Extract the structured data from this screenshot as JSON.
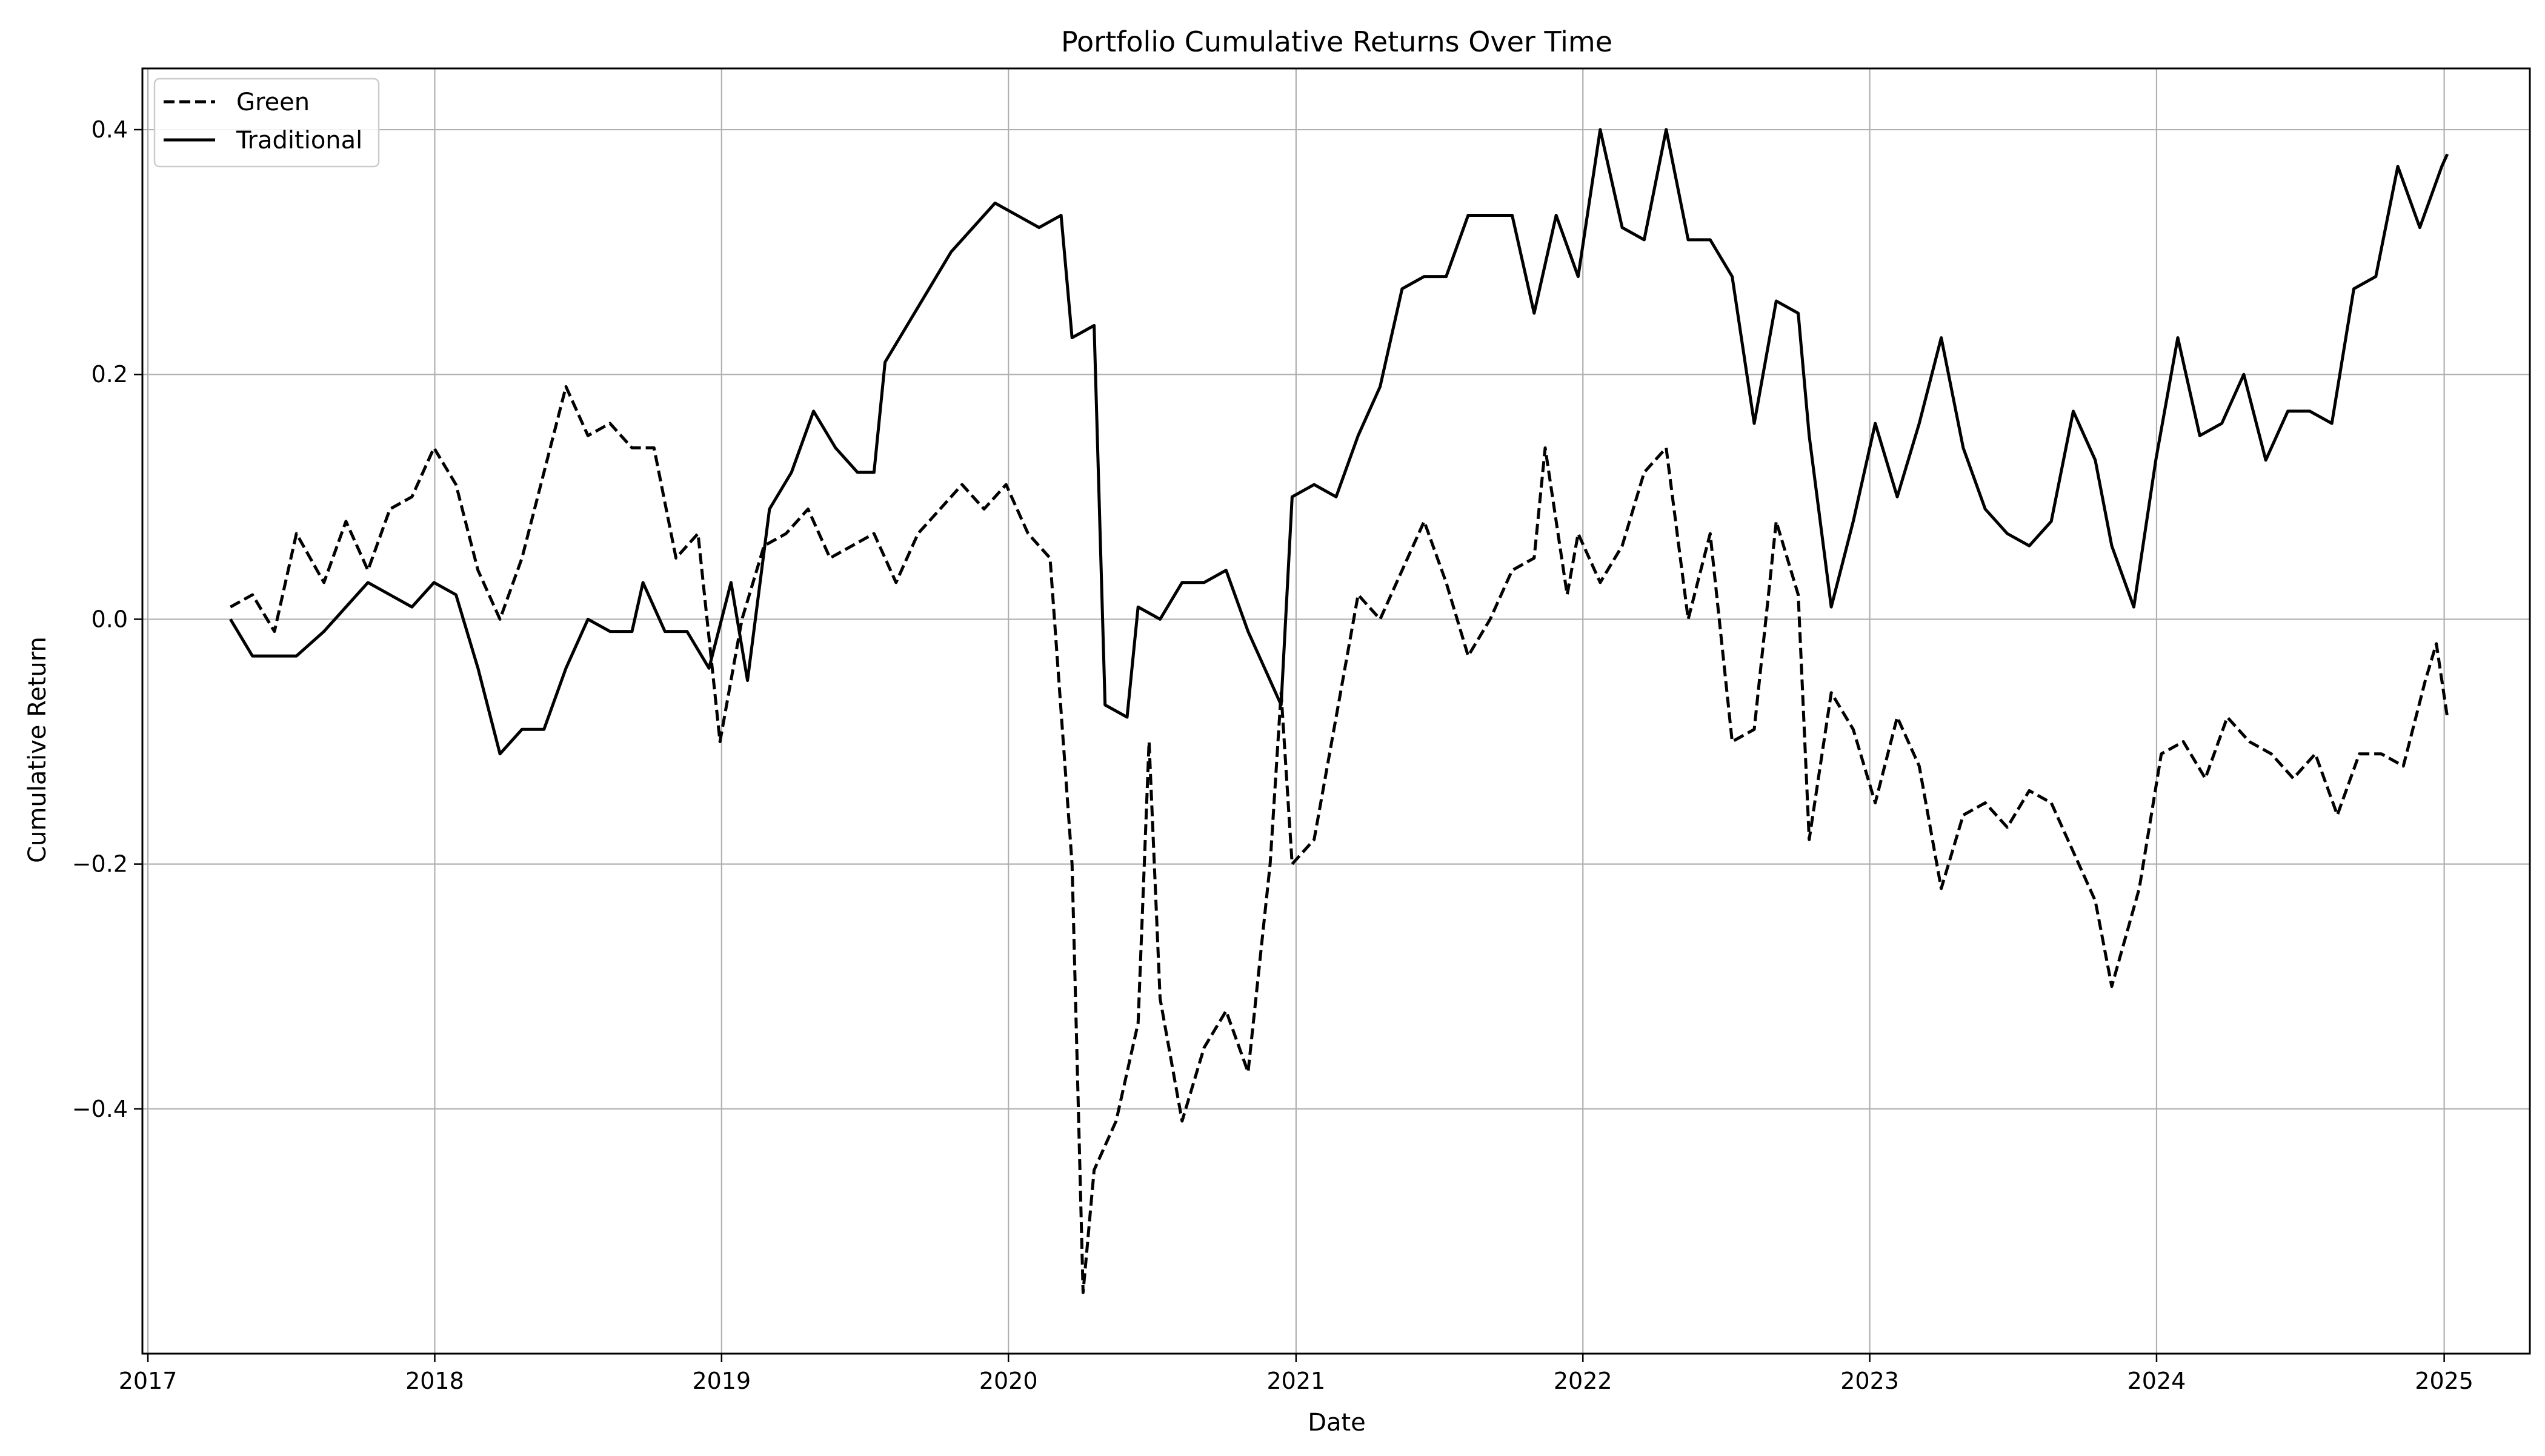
{
  "chart_data": {
    "type": "line",
    "title": "Portfolio Cumulative Returns Over Time",
    "xlabel": "Date",
    "ylabel": "Cumulative Return",
    "xlim": [
      "2016-12-25",
      "2025-04-20"
    ],
    "ylim": [
      -0.6,
      0.45
    ],
    "x_ticks": [
      "2017",
      "2018",
      "2019",
      "2020",
      "2021",
      "2022",
      "2023",
      "2024",
      "2025"
    ],
    "y_ticks": [
      -0.4,
      -0.2,
      0.0,
      0.2,
      0.4
    ],
    "y_tick_labels": [
      "−0.4",
      "−0.2",
      "0.0",
      "0.2",
      "0.4"
    ],
    "grid": true,
    "legend_position": "top-left",
    "series": [
      {
        "name": "Green",
        "style": "dashed",
        "color": "#000000",
        "points": [
          [
            "2017-04-16",
            0.01
          ],
          [
            "2017-05-14",
            0.02
          ],
          [
            "2017-06-11",
            -0.01
          ],
          [
            "2017-07-09",
            0.07
          ],
          [
            "2017-08-13",
            0.03
          ],
          [
            "2017-09-10",
            0.08
          ],
          [
            "2017-10-08",
            0.04
          ],
          [
            "2017-11-05",
            0.09
          ],
          [
            "2017-12-03",
            0.1
          ],
          [
            "2017-12-31",
            0.14
          ],
          [
            "2018-01-28",
            0.11
          ],
          [
            "2018-02-25",
            0.04
          ],
          [
            "2018-03-25",
            0.0
          ],
          [
            "2018-04-22",
            0.05
          ],
          [
            "2018-05-20",
            0.12
          ],
          [
            "2018-06-17",
            0.19
          ],
          [
            "2018-07-15",
            0.15
          ],
          [
            "2018-08-12",
            0.16
          ],
          [
            "2018-09-09",
            0.14
          ],
          [
            "2018-10-07",
            0.14
          ],
          [
            "2018-11-04",
            0.05
          ],
          [
            "2018-12-02",
            0.07
          ],
          [
            "2018-12-30",
            -0.1
          ],
          [
            "2019-01-27",
            0.0
          ],
          [
            "2019-02-24",
            0.06
          ],
          [
            "2019-03-24",
            0.07
          ],
          [
            "2019-04-21",
            0.09
          ],
          [
            "2019-05-19",
            0.05
          ],
          [
            "2019-06-16",
            0.06
          ],
          [
            "2019-07-14",
            0.07
          ],
          [
            "2019-08-11",
            0.03
          ],
          [
            "2019-09-08",
            0.07
          ],
          [
            "2019-10-06",
            0.09
          ],
          [
            "2019-11-03",
            0.11
          ],
          [
            "2019-12-01",
            0.09
          ],
          [
            "2019-12-29",
            0.11
          ],
          [
            "2020-01-26",
            0.07
          ],
          [
            "2020-02-23",
            0.05
          ],
          [
            "2020-03-22",
            -0.2
          ],
          [
            "2020-04-05",
            -0.55
          ],
          [
            "2020-04-19",
            -0.45
          ],
          [
            "2020-05-17",
            -0.41
          ],
          [
            "2020-06-14",
            -0.33
          ],
          [
            "2020-06-28",
            -0.1
          ],
          [
            "2020-07-12",
            -0.31
          ],
          [
            "2020-08-09",
            -0.41
          ],
          [
            "2020-09-06",
            -0.35
          ],
          [
            "2020-10-04",
            -0.32
          ],
          [
            "2020-11-01",
            -0.37
          ],
          [
            "2020-11-29",
            -0.2
          ],
          [
            "2020-12-13",
            -0.06
          ],
          [
            "2020-12-27",
            -0.2
          ],
          [
            "2021-01-24",
            -0.18
          ],
          [
            "2021-02-21",
            -0.08
          ],
          [
            "2021-03-21",
            0.02
          ],
          [
            "2021-04-18",
            0.0
          ],
          [
            "2021-05-16",
            0.04
          ],
          [
            "2021-06-13",
            0.08
          ],
          [
            "2021-07-11",
            0.03
          ],
          [
            "2021-08-08",
            -0.03
          ],
          [
            "2021-09-05",
            0.0
          ],
          [
            "2021-10-03",
            0.04
          ],
          [
            "2021-10-31",
            0.05
          ],
          [
            "2021-11-14",
            0.14
          ],
          [
            "2021-12-12",
            0.02
          ],
          [
            "2021-12-26",
            0.07
          ],
          [
            "2022-01-23",
            0.03
          ],
          [
            "2022-02-20",
            0.06
          ],
          [
            "2022-03-20",
            0.12
          ],
          [
            "2022-04-17",
            0.14
          ],
          [
            "2022-05-15",
            0.0
          ],
          [
            "2022-06-12",
            0.07
          ],
          [
            "2022-07-10",
            -0.1
          ],
          [
            "2022-08-07",
            -0.09
          ],
          [
            "2022-09-04",
            0.08
          ],
          [
            "2022-10-02",
            0.02
          ],
          [
            "2022-10-16",
            -0.18
          ],
          [
            "2022-11-13",
            -0.06
          ],
          [
            "2022-12-11",
            -0.09
          ],
          [
            "2023-01-08",
            -0.15
          ],
          [
            "2023-02-05",
            -0.08
          ],
          [
            "2023-03-05",
            -0.12
          ],
          [
            "2023-04-02",
            -0.22
          ],
          [
            "2023-04-30",
            -0.16
          ],
          [
            "2023-05-28",
            -0.15
          ],
          [
            "2023-06-25",
            -0.17
          ],
          [
            "2023-07-23",
            -0.14
          ],
          [
            "2023-08-20",
            -0.15
          ],
          [
            "2023-09-17",
            -0.19
          ],
          [
            "2023-10-15",
            -0.23
          ],
          [
            "2023-11-05",
            -0.3
          ],
          [
            "2023-12-10",
            -0.22
          ],
          [
            "2024-01-07",
            -0.11
          ],
          [
            "2024-02-04",
            -0.1
          ],
          [
            "2024-03-03",
            -0.13
          ],
          [
            "2024-03-31",
            -0.08
          ],
          [
            "2024-04-28",
            -0.1
          ],
          [
            "2024-05-26",
            -0.11
          ],
          [
            "2024-06-23",
            -0.13
          ],
          [
            "2024-07-21",
            -0.11
          ],
          [
            "2024-08-18",
            -0.16
          ],
          [
            "2024-09-15",
            -0.11
          ],
          [
            "2024-10-13",
            -0.11
          ],
          [
            "2024-11-10",
            -0.12
          ],
          [
            "2024-12-08",
            -0.05
          ],
          [
            "2024-12-22",
            -0.02
          ],
          [
            "2025-01-05",
            -0.08
          ]
        ]
      },
      {
        "name": "Traditional",
        "style": "solid",
        "color": "#000000",
        "points": [
          [
            "2017-04-16",
            0.0
          ],
          [
            "2017-05-14",
            -0.03
          ],
          [
            "2017-06-11",
            -0.03
          ],
          [
            "2017-07-09",
            -0.03
          ],
          [
            "2017-08-13",
            -0.01
          ],
          [
            "2017-09-10",
            0.01
          ],
          [
            "2017-10-08",
            0.03
          ],
          [
            "2017-11-05",
            0.02
          ],
          [
            "2017-12-03",
            0.01
          ],
          [
            "2017-12-31",
            0.03
          ],
          [
            "2018-01-28",
            0.02
          ],
          [
            "2018-02-25",
            -0.04
          ],
          [
            "2018-03-25",
            -0.11
          ],
          [
            "2018-04-22",
            -0.09
          ],
          [
            "2018-05-20",
            -0.09
          ],
          [
            "2018-06-17",
            -0.04
          ],
          [
            "2018-07-15",
            0.0
          ],
          [
            "2018-08-12",
            -0.01
          ],
          [
            "2018-09-09",
            -0.01
          ],
          [
            "2018-09-23",
            0.03
          ],
          [
            "2018-10-21",
            -0.01
          ],
          [
            "2018-11-18",
            -0.01
          ],
          [
            "2018-12-16",
            -0.04
          ],
          [
            "2019-01-13",
            0.03
          ],
          [
            "2019-02-03",
            -0.05
          ],
          [
            "2019-03-03",
            0.09
          ],
          [
            "2019-03-31",
            0.12
          ],
          [
            "2019-04-28",
            0.17
          ],
          [
            "2019-05-26",
            0.14
          ],
          [
            "2019-06-23",
            0.12
          ],
          [
            "2019-07-14",
            0.12
          ],
          [
            "2019-07-28",
            0.21
          ],
          [
            "2019-08-25",
            0.24
          ],
          [
            "2019-09-22",
            0.27
          ],
          [
            "2019-10-20",
            0.3
          ],
          [
            "2019-11-17",
            0.32
          ],
          [
            "2019-12-15",
            0.34
          ],
          [
            "2020-01-12",
            0.33
          ],
          [
            "2020-02-09",
            0.32
          ],
          [
            "2020-03-08",
            0.33
          ],
          [
            "2020-03-22",
            0.23
          ],
          [
            "2020-04-19",
            0.24
          ],
          [
            "2020-05-03",
            -0.07
          ],
          [
            "2020-05-31",
            -0.08
          ],
          [
            "2020-06-14",
            0.01
          ],
          [
            "2020-07-12",
            0.0
          ],
          [
            "2020-08-09",
            0.03
          ],
          [
            "2020-09-06",
            0.03
          ],
          [
            "2020-10-04",
            0.04
          ],
          [
            "2020-11-01",
            -0.01
          ],
          [
            "2020-11-29",
            -0.05
          ],
          [
            "2020-12-13",
            -0.07
          ],
          [
            "2020-12-27",
            0.1
          ],
          [
            "2021-01-24",
            0.11
          ],
          [
            "2021-02-21",
            0.1
          ],
          [
            "2021-03-21",
            0.15
          ],
          [
            "2021-04-18",
            0.19
          ],
          [
            "2021-05-16",
            0.27
          ],
          [
            "2021-06-13",
            0.28
          ],
          [
            "2021-07-11",
            0.28
          ],
          [
            "2021-08-08",
            0.33
          ],
          [
            "2021-09-05",
            0.33
          ],
          [
            "2021-10-03",
            0.33
          ],
          [
            "2021-10-31",
            0.25
          ],
          [
            "2021-11-28",
            0.33
          ],
          [
            "2021-12-26",
            0.28
          ],
          [
            "2022-01-23",
            0.4
          ],
          [
            "2022-02-20",
            0.32
          ],
          [
            "2022-03-20",
            0.31
          ],
          [
            "2022-04-17",
            0.4
          ],
          [
            "2022-05-15",
            0.31
          ],
          [
            "2022-06-12",
            0.31
          ],
          [
            "2022-07-10",
            0.28
          ],
          [
            "2022-08-07",
            0.16
          ],
          [
            "2022-09-04",
            0.26
          ],
          [
            "2022-10-02",
            0.25
          ],
          [
            "2022-10-16",
            0.15
          ],
          [
            "2022-11-13",
            0.01
          ],
          [
            "2022-12-11",
            0.08
          ],
          [
            "2023-01-08",
            0.16
          ],
          [
            "2023-02-05",
            0.1
          ],
          [
            "2023-03-05",
            0.16
          ],
          [
            "2023-04-02",
            0.23
          ],
          [
            "2023-04-30",
            0.14
          ],
          [
            "2023-05-28",
            0.09
          ],
          [
            "2023-06-25",
            0.07
          ],
          [
            "2023-07-23",
            0.06
          ],
          [
            "2023-08-20",
            0.08
          ],
          [
            "2023-09-17",
            0.17
          ],
          [
            "2023-10-15",
            0.13
          ],
          [
            "2023-11-05",
            0.06
          ],
          [
            "2023-12-03",
            0.01
          ],
          [
            "2023-12-31",
            0.13
          ],
          [
            "2024-01-28",
            0.23
          ],
          [
            "2024-02-25",
            0.15
          ],
          [
            "2024-03-24",
            0.16
          ],
          [
            "2024-04-21",
            0.2
          ],
          [
            "2024-05-19",
            0.13
          ],
          [
            "2024-06-16",
            0.17
          ],
          [
            "2024-07-14",
            0.17
          ],
          [
            "2024-08-11",
            0.16
          ],
          [
            "2024-09-08",
            0.27
          ],
          [
            "2024-10-06",
            0.28
          ],
          [
            "2024-11-03",
            0.37
          ],
          [
            "2024-12-01",
            0.32
          ],
          [
            "2024-12-29",
            0.37
          ],
          [
            "2025-01-05",
            0.38
          ]
        ]
      }
    ]
  }
}
